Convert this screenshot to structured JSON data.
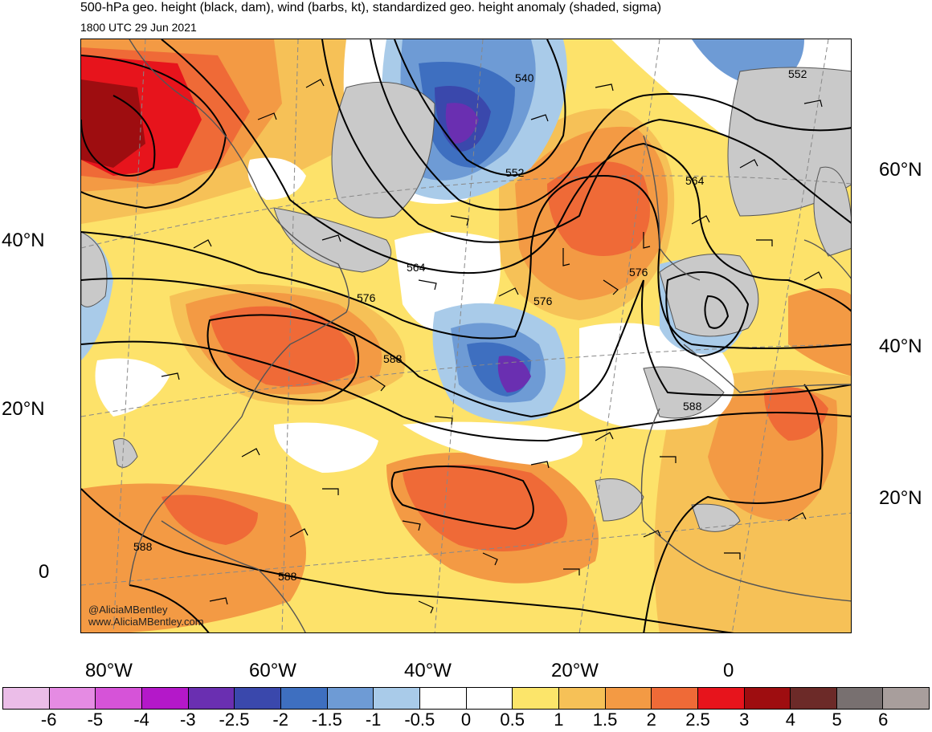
{
  "header": {
    "title": "500-hPa geo. height (black, dam), wind (barbs, kt), standardized geo. height anomaly (shaded, sigma)",
    "valid_time": "1800 UTC 29 Jun 2021"
  },
  "map": {
    "credit_handle": "@AliciaMBentley",
    "credit_site": "www.AliciaMBentley.com",
    "contour_labels": [
      "540",
      "552",
      "552",
      "564",
      "564",
      "576",
      "576",
      "576",
      "588",
      "588",
      "588",
      "588"
    ],
    "left_lat_labels": [
      "40°N",
      "20°N",
      "0"
    ],
    "right_lat_labels": [
      "60°N",
      "40°N",
      "20°N"
    ],
    "bottom_lon_labels": [
      "80°W",
      "60°W",
      "40°W",
      "20°W",
      "0"
    ]
  },
  "colorbar": {
    "labels": [
      "-6",
      "-5",
      "-4",
      "-3",
      "-2.5",
      "-2",
      "-1.5",
      "-1",
      "-0.5",
      "0",
      "0.5",
      "1",
      "1.5",
      "2",
      "2.5",
      "3",
      "4",
      "5",
      "6"
    ],
    "colors": [
      "#ebbde8",
      "#e58be3",
      "#d653d8",
      "#b418c9",
      "#6a2fb1",
      "#3a48ac",
      "#3e6fc0",
      "#6e9bd5",
      "#a9cbe9",
      "#ffffff",
      "#ffffff",
      "#fce56a",
      "#f6c157",
      "#f39a44",
      "#ef6a37",
      "#e7141c",
      "#9e0d10",
      "#6c2a28",
      "#787070",
      "#a89e9c"
    ]
  }
}
